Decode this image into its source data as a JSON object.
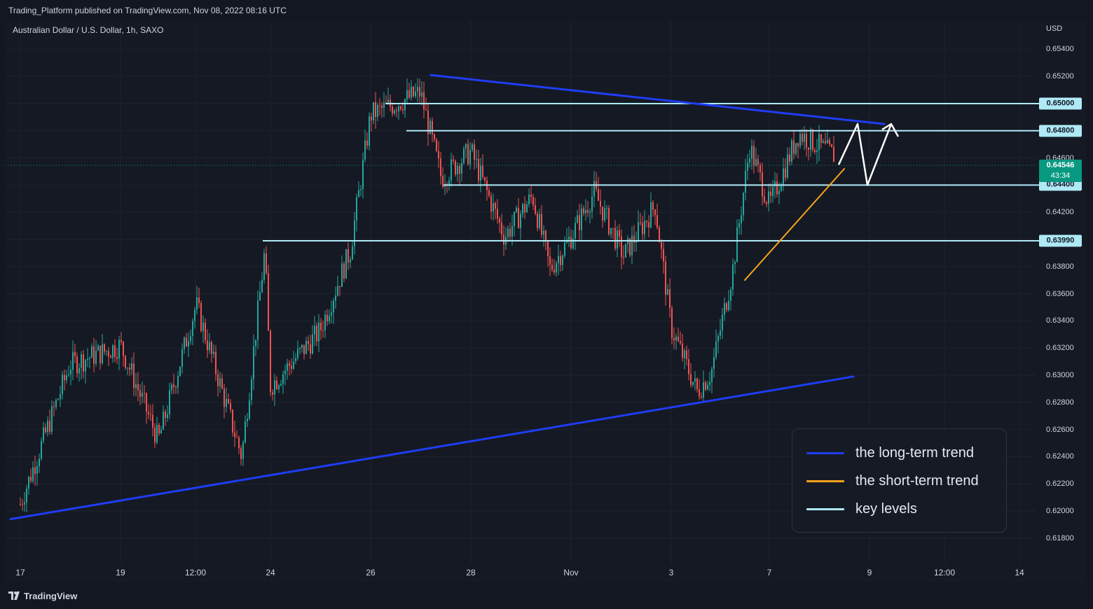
{
  "header": {
    "published": "Trading_Platform published on TradingView.com, Nov 08, 2022 08:16 UTC"
  },
  "symbol_line": "Australian Dollar / U.S. Dollar, 1h, SAXO",
  "currency": "USD",
  "footer": {
    "brand": "TradingView"
  },
  "price_badge": {
    "price": "0.64546",
    "countdown": "43:34"
  },
  "colors": {
    "up": "#26a69a",
    "down": "#ef5350",
    "long_trend": "#1f3df5",
    "short_trend": "#f7a21b",
    "key_levels": "#aee9f5",
    "arrow": "#ffffff"
  },
  "legend": [
    {
      "label": "the long-term trend",
      "color": "#1f3df5"
    },
    {
      "label": "the short-term trend",
      "color": "#f7a21b"
    },
    {
      "label": "key levels",
      "color": "#aee9f5"
    }
  ],
  "chart_data": {
    "type": "candlestick",
    "title": "Australian Dollar / U.S. Dollar, 1h, SAXO",
    "ylim": [
      0.617,
      0.6555
    ],
    "y_ticks": [
      "0.65400",
      "0.65200",
      "0.65000",
      "0.64800",
      "0.64600",
      "0.64400",
      "0.64200",
      "0.64000",
      "0.63800",
      "0.63600",
      "0.63400",
      "0.63200",
      "0.63000",
      "0.62800",
      "0.62600",
      "0.62400",
      "0.62200",
      "0.62000",
      "0.61800"
    ],
    "x_ticks": [
      "17",
      "19",
      "12:00",
      "24",
      "26",
      "28",
      "Nov",
      "3",
      "7",
      "9",
      "12:00",
      "14"
    ],
    "current_price": 0.64546,
    "key_levels": [
      {
        "label": "0.65000",
        "value": 0.65
      },
      {
        "label": "0.64800",
        "value": 0.648
      },
      {
        "label": "0.64400",
        "value": 0.644
      },
      {
        "label": "0.63990",
        "value": 0.6399
      }
    ],
    "price_path": [
      {
        "x": "17",
        "y": 0.6205
      },
      {
        "x": "18",
        "y": 0.6308
      },
      {
        "x": "19",
        "y": 0.6322
      },
      {
        "x": "20",
        "y": 0.6252
      },
      {
        "x": "21",
        "y": 0.6352
      },
      {
        "x": "21 end",
        "y": 0.624
      },
      {
        "x": "23 end",
        "y": 0.6392
      },
      {
        "x": "24",
        "y": 0.6292
      },
      {
        "x": "25",
        "y": 0.6332
      },
      {
        "x": "25 end",
        "y": 0.6392
      },
      {
        "x": "26",
        "y": 0.6492
      },
      {
        "x": "27",
        "y": 0.6508
      },
      {
        "x": "27 end",
        "y": 0.6445
      },
      {
        "x": "28",
        "y": 0.6465
      },
      {
        "x": "28 end",
        "y": 0.6402
      },
      {
        "x": "30",
        "y": 0.6432
      },
      {
        "x": "31",
        "y": 0.6378
      },
      {
        "x": "Nov",
        "y": 0.6402
      },
      {
        "x": "1",
        "y": 0.6435
      },
      {
        "x": "2",
        "y": 0.6388
      },
      {
        "x": "2 end",
        "y": 0.6425
      },
      {
        "x": "3",
        "y": 0.6335
      },
      {
        "x": "3 end",
        "y": 0.6288
      },
      {
        "x": "4",
        "y": 0.6302
      },
      {
        "x": "4 end",
        "y": 0.6375
      },
      {
        "x": "6",
        "y": 0.6468
      },
      {
        "x": "7",
        "y": 0.6425
      },
      {
        "x": "7 end",
        "y": 0.6478
      },
      {
        "x": "8",
        "y": 0.6462
      }
    ],
    "trendlines": {
      "long_term_support": [
        {
          "x": "17",
          "y": 0.6194
        },
        {
          "x": "9",
          "y": 0.6299
        }
      ],
      "long_term_resistance": [
        {
          "x": "27",
          "y": 0.6521
        },
        {
          "x": "9",
          "y": 0.6485
        }
      ],
      "short_term_support": [
        {
          "x": "6",
          "y": 0.637
        },
        {
          "x": "8",
          "y": 0.6452
        }
      ]
    },
    "projection_arrow": [
      {
        "x": "8",
        "y": 0.6455
      },
      {
        "x": "8",
        "y": 0.6485
      },
      {
        "x": "9",
        "y": 0.644
      },
      {
        "x": "9",
        "y": 0.6485
      }
    ]
  }
}
